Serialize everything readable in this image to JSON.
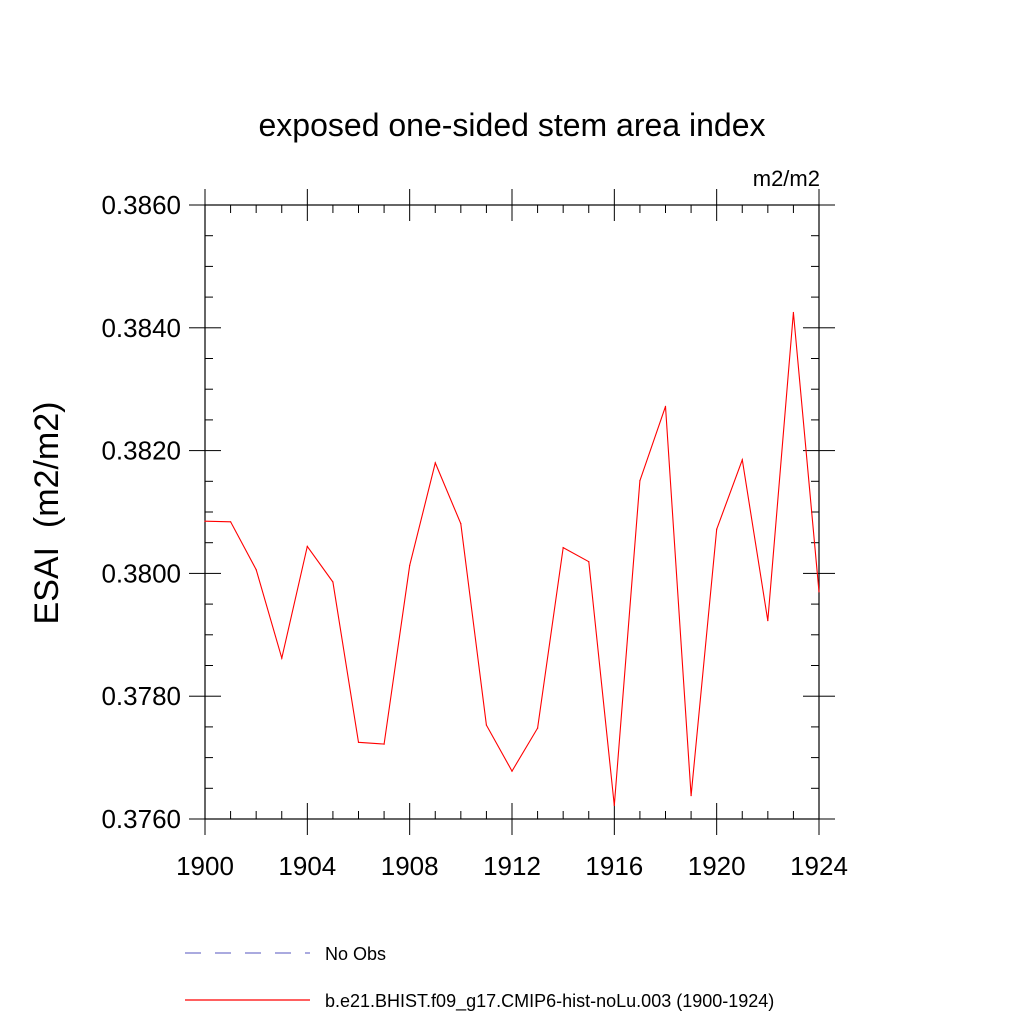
{
  "chart_data": {
    "type": "line",
    "title": "exposed one-sided stem area index",
    "units_label": "m2/m2",
    "ylabel": "ESAI  (m2/m2)",
    "xlabel": "",
    "xlim": [
      1900,
      1924
    ],
    "ylim": [
      0.376,
      0.386
    ],
    "x_ticks": [
      1900,
      1904,
      1908,
      1912,
      1916,
      1920,
      1924
    ],
    "y_ticks": [
      "0.3760",
      "0.3780",
      "0.3800",
      "0.3820",
      "0.3840",
      "0.3860"
    ],
    "grid": false,
    "series": [
      {
        "name": "b.e21.BHIST.f09_g17.CMIP6-hist-noLu.003 (1900-1924)",
        "color": "#ff0000",
        "x": [
          1900,
          1901,
          1902,
          1903,
          1904,
          1905,
          1906,
          1907,
          1908,
          1909,
          1910,
          1911,
          1912,
          1913,
          1914,
          1915,
          1916,
          1917,
          1918,
          1919,
          1920,
          1921,
          1922,
          1923,
          1924
        ],
        "values": [
          0.38085,
          0.38084,
          0.38006,
          0.37862,
          0.38044,
          0.37986,
          0.37725,
          0.37722,
          0.38013,
          0.3818,
          0.38081,
          0.37753,
          0.37678,
          0.37748,
          0.38042,
          0.38019,
          0.37622,
          0.38151,
          0.38272,
          0.37638,
          0.38072,
          0.38185,
          0.37923,
          0.38425,
          0.3797
        ]
      }
    ],
    "legend": [
      {
        "label": "No Obs",
        "style": "dashed",
        "color": "#7777cc"
      },
      {
        "label": "b.e21.BHIST.f09_g17.CMIP6-hist-noLu.003 (1900-1924)",
        "style": "solid",
        "color": "#ff0000"
      }
    ],
    "legend_position": "bottom"
  }
}
